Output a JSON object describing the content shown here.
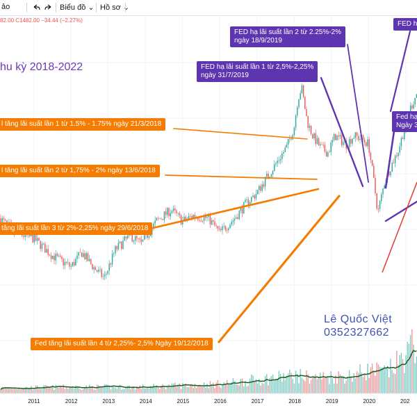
{
  "toolbar": {
    "partial_left": "ảo",
    "undo_icon": "undo-icon",
    "redo_icon": "redo-icon",
    "chart_menu": "Biểu đồ",
    "profile_menu": "Hồ sơ",
    "chevron_icon": "chevron-down-icon"
  },
  "ohlc": "82.00  C1482.00  −34.44  (−2.27%)",
  "title": "hu kỳ 2018-2022",
  "author": {
    "name": "Lê Quốc Việt",
    "phone": "0352327662"
  },
  "annotations": {
    "hike1": "l tăng lãi suất lần 1 từ 1.5% - 1.75% ngày 21/3/2018",
    "hike2": "l tăng lãi suất lần 2 từ 1,75% - 2% ngày 13/6/2018",
    "hike3": "tăng lãi suất lần 3 từ 2%-2,25% ngày 29/6/2018",
    "hike4": "Fed tăng lãi suất lần 4 từ 2,25%- 2,5% Ngày 19/12/2018",
    "cut1_l1": "FED hạ lãi suất lần 1 từ 2,5%-2,25%",
    "cut1_l2": "ngày 31/7/2019",
    "cut2_l1": "FED hạ lãi suất lần 2 từ 2.25%-2%",
    "cut2_l2": "ngày 18/9/2019",
    "cut3_l1": "FED h",
    "cut4_l1": "Fed hạ",
    "cut4_l2": "Ngày 3"
  },
  "colors": {
    "up": "#26a69a",
    "down": "#ef5350",
    "hike": "#f57c00",
    "cut": "#5e35b1",
    "ma": "#1b5e20",
    "trend": "#e53935"
  },
  "chart_data": {
    "type": "candlestick",
    "x_ticks": [
      "2011",
      "2012",
      "2013",
      "2014",
      "2015",
      "2016",
      "2017",
      "2018",
      "2019",
      "2020",
      "202"
    ],
    "x_range": [
      2010.1,
      2021.3
    ],
    "y_range_price": [
      0,
      1
    ],
    "price_path": [
      [
        2010.1,
        0.38
      ],
      [
        2010.5,
        0.33
      ],
      [
        2011.0,
        0.31
      ],
      [
        2011.5,
        0.25
      ],
      [
        2012.0,
        0.21
      ],
      [
        2012.3,
        0.26
      ],
      [
        2012.6,
        0.21
      ],
      [
        2012.9,
        0.17
      ],
      [
        2013.2,
        0.27
      ],
      [
        2013.6,
        0.32
      ],
      [
        2013.9,
        0.29
      ],
      [
        2014.3,
        0.37
      ],
      [
        2014.7,
        0.41
      ],
      [
        2015.0,
        0.37
      ],
      [
        2015.3,
        0.39
      ],
      [
        2015.7,
        0.38
      ],
      [
        2016.0,
        0.33
      ],
      [
        2016.4,
        0.38
      ],
      [
        2016.7,
        0.43
      ],
      [
        2017.0,
        0.47
      ],
      [
        2017.4,
        0.55
      ],
      [
        2017.8,
        0.63
      ],
      [
        2018.0,
        0.7
      ],
      [
        2018.1,
        0.8
      ],
      [
        2018.2,
        0.84
      ],
      [
        2018.35,
        0.72
      ],
      [
        2018.5,
        0.67
      ],
      [
        2018.7,
        0.63
      ],
      [
        2018.9,
        0.61
      ],
      [
        2019.1,
        0.67
      ],
      [
        2019.4,
        0.64
      ],
      [
        2019.6,
        0.67
      ],
      [
        2019.8,
        0.66
      ],
      [
        2020.0,
        0.64
      ],
      [
        2020.15,
        0.5
      ],
      [
        2020.25,
        0.4
      ],
      [
        2020.45,
        0.52
      ],
      [
        2020.8,
        0.62
      ],
      [
        2021.1,
        0.76
      ],
      [
        2021.3,
        0.82
      ]
    ],
    "volume_path": [
      [
        2010.1,
        0.1
      ],
      [
        2012.0,
        0.12
      ],
      [
        2014.0,
        0.12
      ],
      [
        2016.0,
        0.18
      ],
      [
        2018.0,
        0.34
      ],
      [
        2018.5,
        0.3
      ],
      [
        2019.5,
        0.34
      ],
      [
        2020.0,
        0.44
      ],
      [
        2020.5,
        0.4
      ],
      [
        2021.0,
        0.72
      ],
      [
        2021.3,
        1.0
      ]
    ]
  }
}
